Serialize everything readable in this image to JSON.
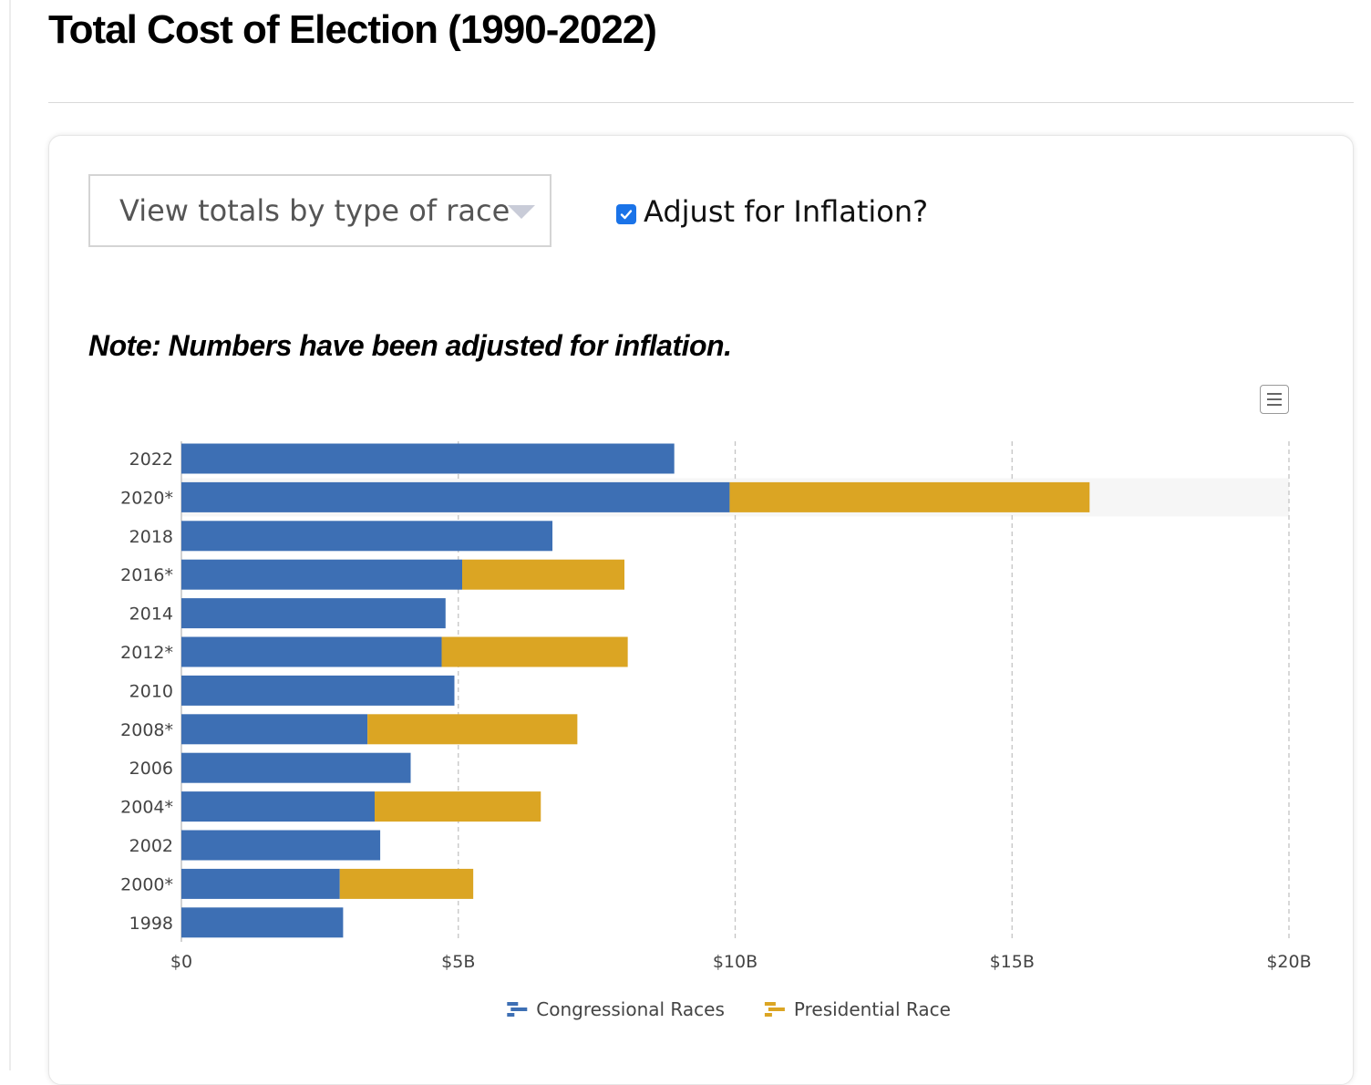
{
  "page_title": "Total Cost of Election (1990-2022)",
  "controls": {
    "view_dropdown": {
      "selected": "View totals by type of race"
    },
    "inflation_checkbox": {
      "label": "Adjust for Inflation?",
      "checked": true
    }
  },
  "note": "Note: Numbers have been adjusted for inflation.",
  "chart_menu_icon": "hamburger-menu-icon",
  "chart_data": {
    "type": "bar",
    "orientation": "horizontal",
    "stacked": true,
    "categories": [
      "2022",
      "2020*",
      "2018",
      "2016*",
      "2014",
      "2012*",
      "2010",
      "2008*",
      "2006",
      "2004*",
      "2002",
      "2000*",
      "1998"
    ],
    "series": [
      {
        "name": "Congressional Races",
        "color": "#3d6fb4",
        "values": [
          8.9,
          9.9,
          6.7,
          5.07,
          4.77,
          4.7,
          4.93,
          3.36,
          4.14,
          3.49,
          3.59,
          2.86,
          2.92
        ]
      },
      {
        "name": "Presidential Race",
        "color": "#dba523",
        "values": [
          0,
          6.5,
          0,
          2.93,
          0,
          3.36,
          0,
          3.79,
          0,
          3.0,
          0,
          2.41,
          0
        ]
      }
    ],
    "xlim": [
      0,
      20
    ],
    "x_ticks": [
      0,
      5,
      10,
      15,
      20
    ],
    "x_tick_labels": [
      "$0",
      "$5B",
      "$10B",
      "$15B",
      "$20B"
    ],
    "unit": "billions USD",
    "grid": "vertical dashed",
    "legend_position": "bottom",
    "highlighted_category": "2020*"
  }
}
